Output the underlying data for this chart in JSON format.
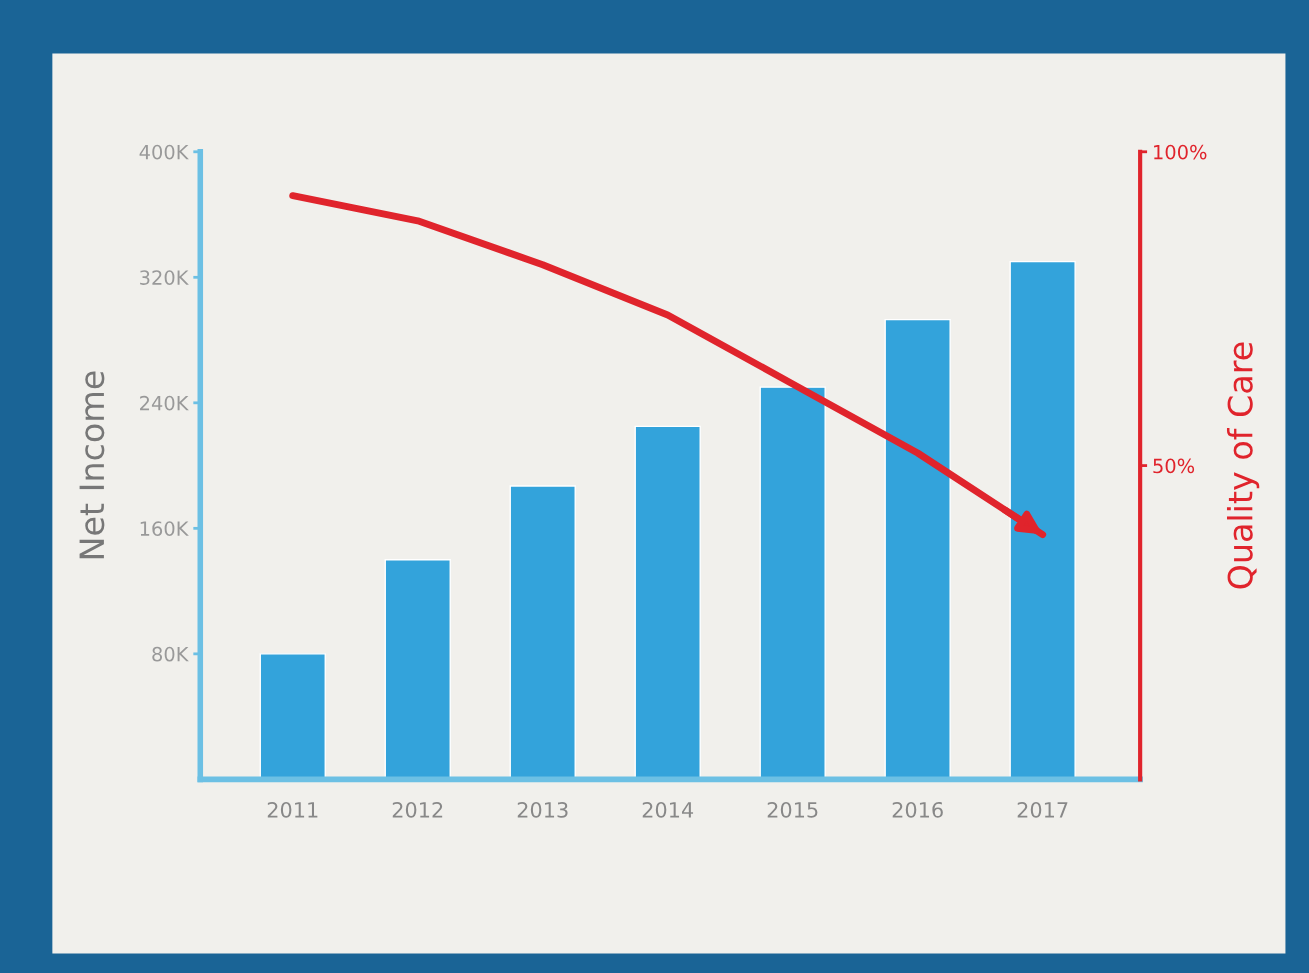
{
  "chart_data": {
    "type": "bar",
    "categories": [
      "2011",
      "2012",
      "2013",
      "2014",
      "2015",
      "2016",
      "2017"
    ],
    "series": [
      {
        "color": "#33a3db",
        "values": [
          80000,
          140000,
          187000,
          225000,
          250000,
          293000,
          330000
        ]
      },
      {
        "type": "line",
        "axis": "y2",
        "color": "#e0242c",
        "values": [
          93,
          89,
          82,
          74,
          63,
          52,
          39
        ]
      }
    ],
    "ylabel": "Net Income",
    "y2label": "Quality of Care",
    "ylim": [
      0,
      400000
    ],
    "yticks": [
      {
        "value": 80000,
        "label": "80K"
      },
      {
        "value": 160000,
        "label": "160K"
      },
      {
        "value": 240000,
        "label": "240K"
      },
      {
        "value": 320000,
        "label": "320K"
      },
      {
        "value": 400000,
        "label": "400K"
      }
    ],
    "y2lim": [
      0,
      100
    ],
    "y2ticks": [
      {
        "value": 50,
        "label": "50%"
      },
      {
        "value": 100,
        "label": "100%"
      }
    ],
    "grid": false,
    "legend": false,
    "marker": "none",
    "line_style": "solid"
  }
}
